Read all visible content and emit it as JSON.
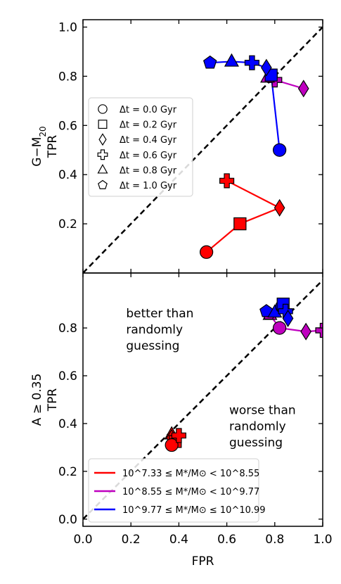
{
  "chart_data": [
    {
      "type": "scatter",
      "panel": "top",
      "ylabel_line1": "G−M",
      "ylabel_sub": "20",
      "ylabel_line2": "TPR",
      "xlim": [
        0,
        1
      ],
      "ylim": [
        0,
        1.03
      ],
      "yticks": [
        0.2,
        0.4,
        0.6,
        0.8,
        1.0
      ],
      "ytick_labels": [
        "0.2",
        "0.4",
        "0.6",
        "0.8",
        "1.0"
      ],
      "grid": false,
      "diagonal": true,
      "marker_legend": {
        "placement": "middle-left",
        "entries": [
          {
            "marker": "circle",
            "label": "Δt = 0.0 Gyr"
          },
          {
            "marker": "square",
            "label": "Δt = 0.2 Gyr"
          },
          {
            "marker": "diamond",
            "label": "Δt = 0.4 Gyr"
          },
          {
            "marker": "plus",
            "label": "Δt = 0.6 Gyr"
          },
          {
            "marker": "triangle",
            "label": "Δt = 0.8 Gyr"
          },
          {
            "marker": "pentagon",
            "label": "Δt = 1.0 Gyr"
          }
        ]
      },
      "series": [
        {
          "color": "#ff0000",
          "points": [
            {
              "x": 0.515,
              "y": 0.085,
              "marker": "circle"
            },
            {
              "x": 0.655,
              "y": 0.2,
              "marker": "square"
            },
            {
              "x": 0.82,
              "y": 0.265,
              "marker": "diamond"
            },
            {
              "x": 0.6,
              "y": 0.375,
              "marker": "plus"
            }
          ]
        },
        {
          "color": "#bf00bf",
          "points": [
            {
              "x": 0.92,
              "y": 0.75,
              "marker": "diamond"
            },
            {
              "x": 0.8,
              "y": 0.785,
              "marker": "plus"
            },
            {
              "x": 0.77,
              "y": 0.795,
              "marker": "triangle"
            }
          ]
        },
        {
          "color": "#0000ff",
          "points": [
            {
              "x": 0.82,
              "y": 0.5,
              "marker": "circle"
            },
            {
              "x": 0.785,
              "y": 0.805,
              "marker": "square"
            },
            {
              "x": 0.765,
              "y": 0.835,
              "marker": "diamond"
            },
            {
              "x": 0.705,
              "y": 0.855,
              "marker": "plus"
            },
            {
              "x": 0.62,
              "y": 0.86,
              "marker": "triangle"
            },
            {
              "x": 0.53,
              "y": 0.855,
              "marker": "pentagon"
            }
          ]
        }
      ]
    },
    {
      "type": "scatter",
      "panel": "bottom",
      "ylabel_line1": "A ≥ 0.35",
      "ylabel_line2": "TPR",
      "xlabel": "FPR",
      "xlim": [
        0,
        1
      ],
      "ylim": [
        -0.03,
        1.03
      ],
      "xticks": [
        0.0,
        0.2,
        0.4,
        0.6,
        0.8,
        1.0
      ],
      "xtick_labels": [
        "0.0",
        "0.2",
        "0.4",
        "0.6",
        "0.8",
        "1.0"
      ],
      "yticks": [
        0.0,
        0.2,
        0.4,
        0.6,
        0.8
      ],
      "ytick_labels": [
        "0.0",
        "0.2",
        "0.4",
        "0.6",
        "0.8"
      ],
      "grid": false,
      "diagonal": true,
      "annotations": [
        {
          "lines": [
            "better than",
            "randomly",
            "guessing"
          ],
          "x": 0.18,
          "y": 0.845
        },
        {
          "lines": [
            "worse than",
            "randomly",
            "guessing"
          ],
          "x": 0.61,
          "y": 0.44
        }
      ],
      "mass_legend": {
        "placement": "lower-left",
        "entries": [
          {
            "color": "#ff0000",
            "label": "10^7.33 ≤ M*/M⊙ < 10^8.55"
          },
          {
            "color": "#bf00bf",
            "label": "10^8.55 ≤ M*/M⊙ < 10^9.77"
          },
          {
            "color": "#0000ff",
            "label": "10^9.77 ≤ M*/M⊙ ≤ 10^10.99"
          }
        ]
      },
      "series": [
        {
          "color": "#ff0000",
          "points": [
            {
              "x": 0.37,
              "y": 0.355,
              "marker": "triangle"
            },
            {
              "x": 0.37,
              "y": 0.34,
              "marker": "diamond"
            },
            {
              "x": 0.385,
              "y": 0.325,
              "marker": "square"
            },
            {
              "x": 0.37,
              "y": 0.31,
              "marker": "circle"
            },
            {
              "x": 0.4,
              "y": 0.35,
              "marker": "plus"
            }
          ]
        },
        {
          "color": "#bf00bf",
          "points": [
            {
              "x": 1.0,
              "y": 0.79,
              "marker": "plus"
            },
            {
              "x": 0.93,
              "y": 0.785,
              "marker": "diamond"
            },
            {
              "x": 0.82,
              "y": 0.8,
              "marker": "circle"
            },
            {
              "x": 0.78,
              "y": 0.855,
              "marker": "triangle"
            },
            {
              "x": 0.775,
              "y": 0.86,
              "marker": "pentagon"
            }
          ]
        },
        {
          "color": "#0000ff",
          "points": [
            {
              "x": 0.765,
              "y": 0.87,
              "marker": "pentagon"
            },
            {
              "x": 0.8,
              "y": 0.865,
              "marker": "triangle"
            },
            {
              "x": 0.83,
              "y": 0.89,
              "marker": "circle"
            },
            {
              "x": 0.835,
              "y": 0.9,
              "marker": "square"
            },
            {
              "x": 0.845,
              "y": 0.87,
              "marker": "plus"
            },
            {
              "x": 0.855,
              "y": 0.84,
              "marker": "diamond"
            }
          ]
        }
      ]
    }
  ]
}
